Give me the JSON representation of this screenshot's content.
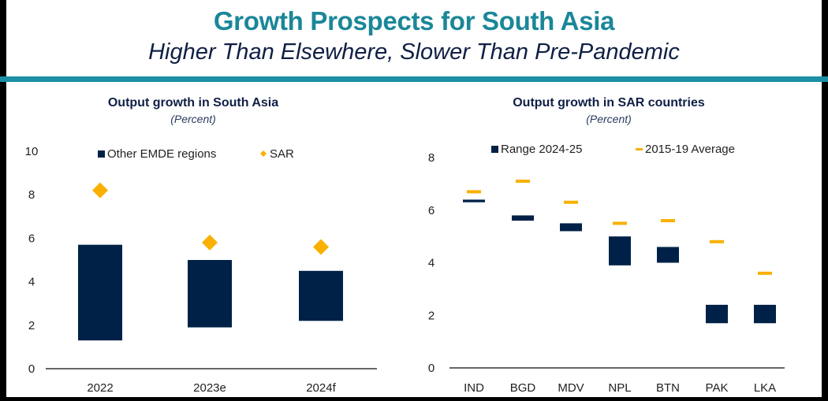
{
  "header": {
    "title": "Growth Prospects for South Asia",
    "subtitle": "Higher Than Elsewhere, Slower Than Pre-Pandemic"
  },
  "colors": {
    "navy": "#002147",
    "gold": "#f9b000",
    "teal": "#1a8fa6",
    "title_teal": "#1a8799"
  },
  "chart_data": [
    {
      "type": "bar",
      "subtype": "floating-range-with-markers",
      "title": "Output growth in South Asia",
      "subtitle": "(Percent)",
      "xlabel": "",
      "ylabel": "",
      "ylim": [
        0,
        10
      ],
      "yticks": [
        0,
        2,
        4,
        6,
        8,
        10
      ],
      "categories": [
        "2022",
        "2023e",
        "2024f"
      ],
      "legend_placement": "top",
      "grid": false,
      "series": [
        {
          "name": "Other EMDE regions",
          "kind": "range",
          "low": [
            1.3,
            1.9,
            2.2
          ],
          "high": [
            5.7,
            5.0,
            4.5
          ]
        },
        {
          "name": "SAR",
          "kind": "diamond",
          "values": [
            8.2,
            5.8,
            5.6
          ]
        }
      ]
    },
    {
      "type": "bar",
      "subtype": "floating-range-with-markers",
      "title": "Output growth in SAR countries",
      "subtitle": "(Percent)",
      "xlabel": "",
      "ylabel": "",
      "ylim": [
        0,
        8
      ],
      "yticks": [
        0,
        2,
        4,
        6,
        8
      ],
      "categories": [
        "IND",
        "BGD",
        "MDV",
        "NPL",
        "BTN",
        "PAK",
        "LKA"
      ],
      "legend_placement": "top",
      "grid": false,
      "series": [
        {
          "name": "Range 2024-25",
          "kind": "range",
          "low": [
            6.3,
            5.6,
            5.2,
            3.9,
            4.0,
            1.7,
            1.7
          ],
          "high": [
            6.4,
            5.8,
            5.5,
            5.0,
            4.6,
            2.4,
            2.4
          ]
        },
        {
          "name": "2015-19 Average",
          "kind": "dash",
          "values": [
            6.7,
            7.1,
            6.3,
            5.5,
            5.6,
            4.8,
            3.6
          ]
        }
      ]
    }
  ]
}
